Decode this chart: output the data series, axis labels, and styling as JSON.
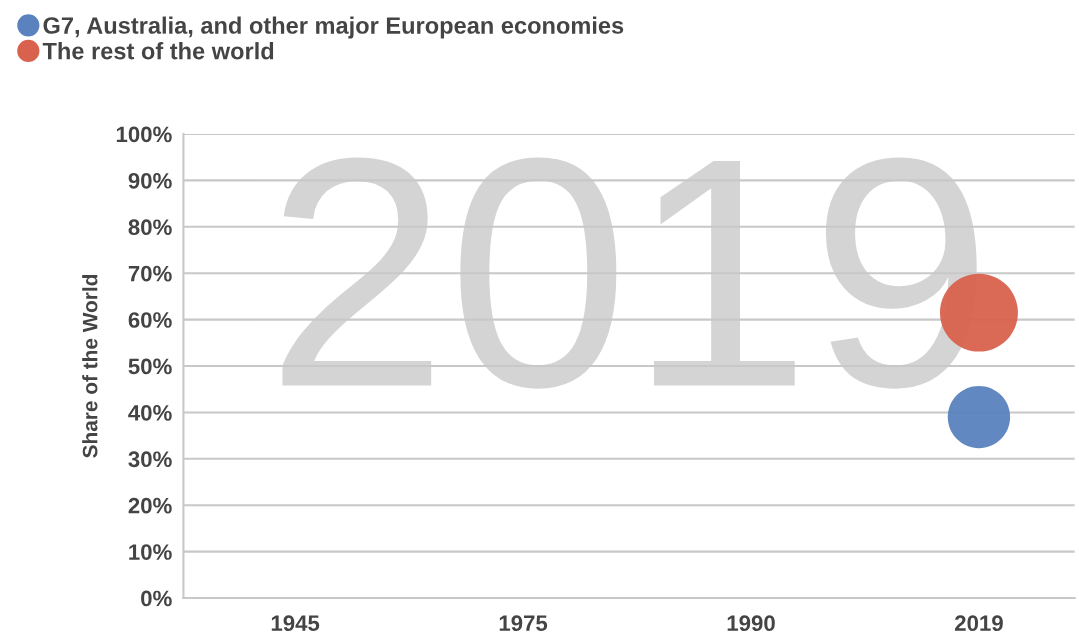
{
  "chart_data": {
    "type": "bubble",
    "categories": [
      "1945",
      "1975",
      "1990",
      "2019"
    ],
    "ylabel": "Share of the World",
    "ylim": [
      0,
      100
    ],
    "yticks": [
      {
        "value": 0,
        "label": "0%"
      },
      {
        "value": 10,
        "label": "10%"
      },
      {
        "value": 20,
        "label": "20%"
      },
      {
        "value": 30,
        "label": "30%"
      },
      {
        "value": 40,
        "label": "40%"
      },
      {
        "value": 50,
        "label": "50%"
      },
      {
        "value": 60,
        "label": "60%"
      },
      {
        "value": 70,
        "label": "70%"
      },
      {
        "value": 80,
        "label": "80%"
      },
      {
        "value": 90,
        "label": "90%"
      },
      {
        "value": 100,
        "label": "100%"
      }
    ],
    "series": [
      {
        "name": "G7, Australia, and other major European economies",
        "color": "#5a82be",
        "values": [
          null,
          null,
          null,
          39
        ],
        "sizes": [
          null,
          null,
          null,
          0.64
        ]
      },
      {
        "name": "The rest of the world",
        "color": "#d8624d",
        "values": [
          null,
          null,
          null,
          61.5
        ],
        "sizes": [
          null,
          null,
          null,
          1
        ]
      }
    ],
    "annotations": [
      "2019"
    ],
    "grid": "y",
    "legend": "top left"
  }
}
